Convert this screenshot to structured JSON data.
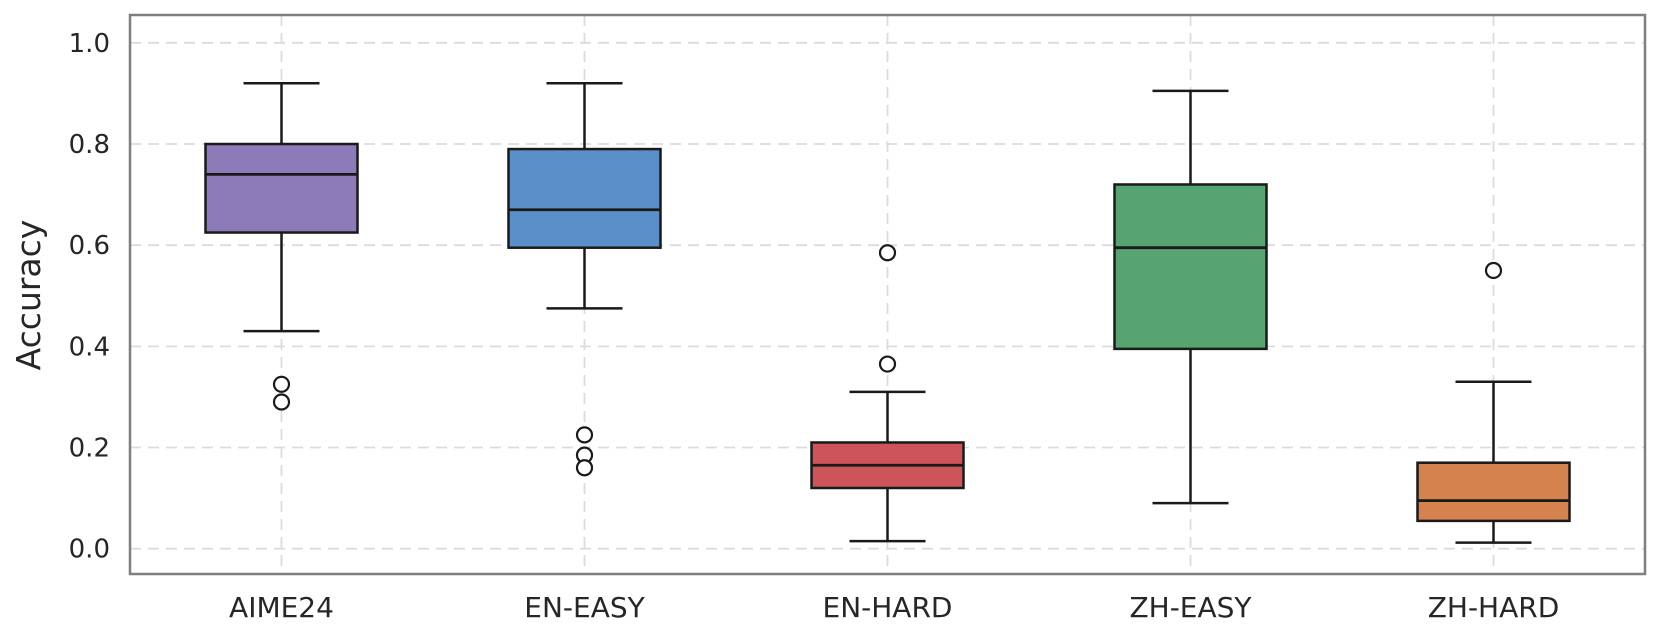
{
  "figure": {
    "background": "#ffffff"
  },
  "chart_data": {
    "type": "boxplot",
    "title": "",
    "xlabel": "",
    "ylabel": "Accuracy",
    "categories": [
      "AIME24",
      "EN-EASY",
      "EN-HARD",
      "ZH-EASY",
      "ZH-HARD"
    ],
    "y_ticks": [
      "0.0",
      "0.2",
      "0.4",
      "0.6",
      "0.8",
      "1.0"
    ],
    "ylim": [
      -0.05,
      1.055
    ],
    "grid": "dashed-both-axes",
    "legend": "none",
    "series": [
      {
        "name": "AIME24",
        "color": "#8d7ab8",
        "whisker_low": 0.43,
        "q1": 0.625,
        "median": 0.74,
        "q3": 0.8,
        "whisker_high": 0.92,
        "outliers": [
          0.325,
          0.29
        ]
      },
      {
        "name": "EN-EASY",
        "color": "#5b8fc9",
        "whisker_low": 0.475,
        "q1": 0.595,
        "median": 0.67,
        "q3": 0.79,
        "whisker_high": 0.92,
        "outliers": [
          0.225,
          0.185,
          0.16
        ]
      },
      {
        "name": "EN-HARD",
        "color": "#cd5459",
        "whisker_low": 0.015,
        "q1": 0.12,
        "median": 0.165,
        "q3": 0.21,
        "whisker_high": 0.31,
        "outliers": [
          0.585,
          0.365
        ]
      },
      {
        "name": "ZH-EASY",
        "color": "#58a471",
        "whisker_low": 0.09,
        "q1": 0.395,
        "median": 0.595,
        "q3": 0.72,
        "whisker_high": 0.905,
        "outliers": []
      },
      {
        "name": "ZH-HARD",
        "color": "#d5824e",
        "whisker_low": 0.012,
        "q1": 0.055,
        "median": 0.095,
        "q3": 0.17,
        "whisker_high": 0.33,
        "outliers": [
          0.55
        ]
      }
    ],
    "style": {
      "grid_color": "#dcdcdc",
      "spine_color": "#7f7f7f",
      "line_color": "#1a1a1a",
      "text_color": "#262626",
      "flier_fill": "#ffffff"
    }
  }
}
